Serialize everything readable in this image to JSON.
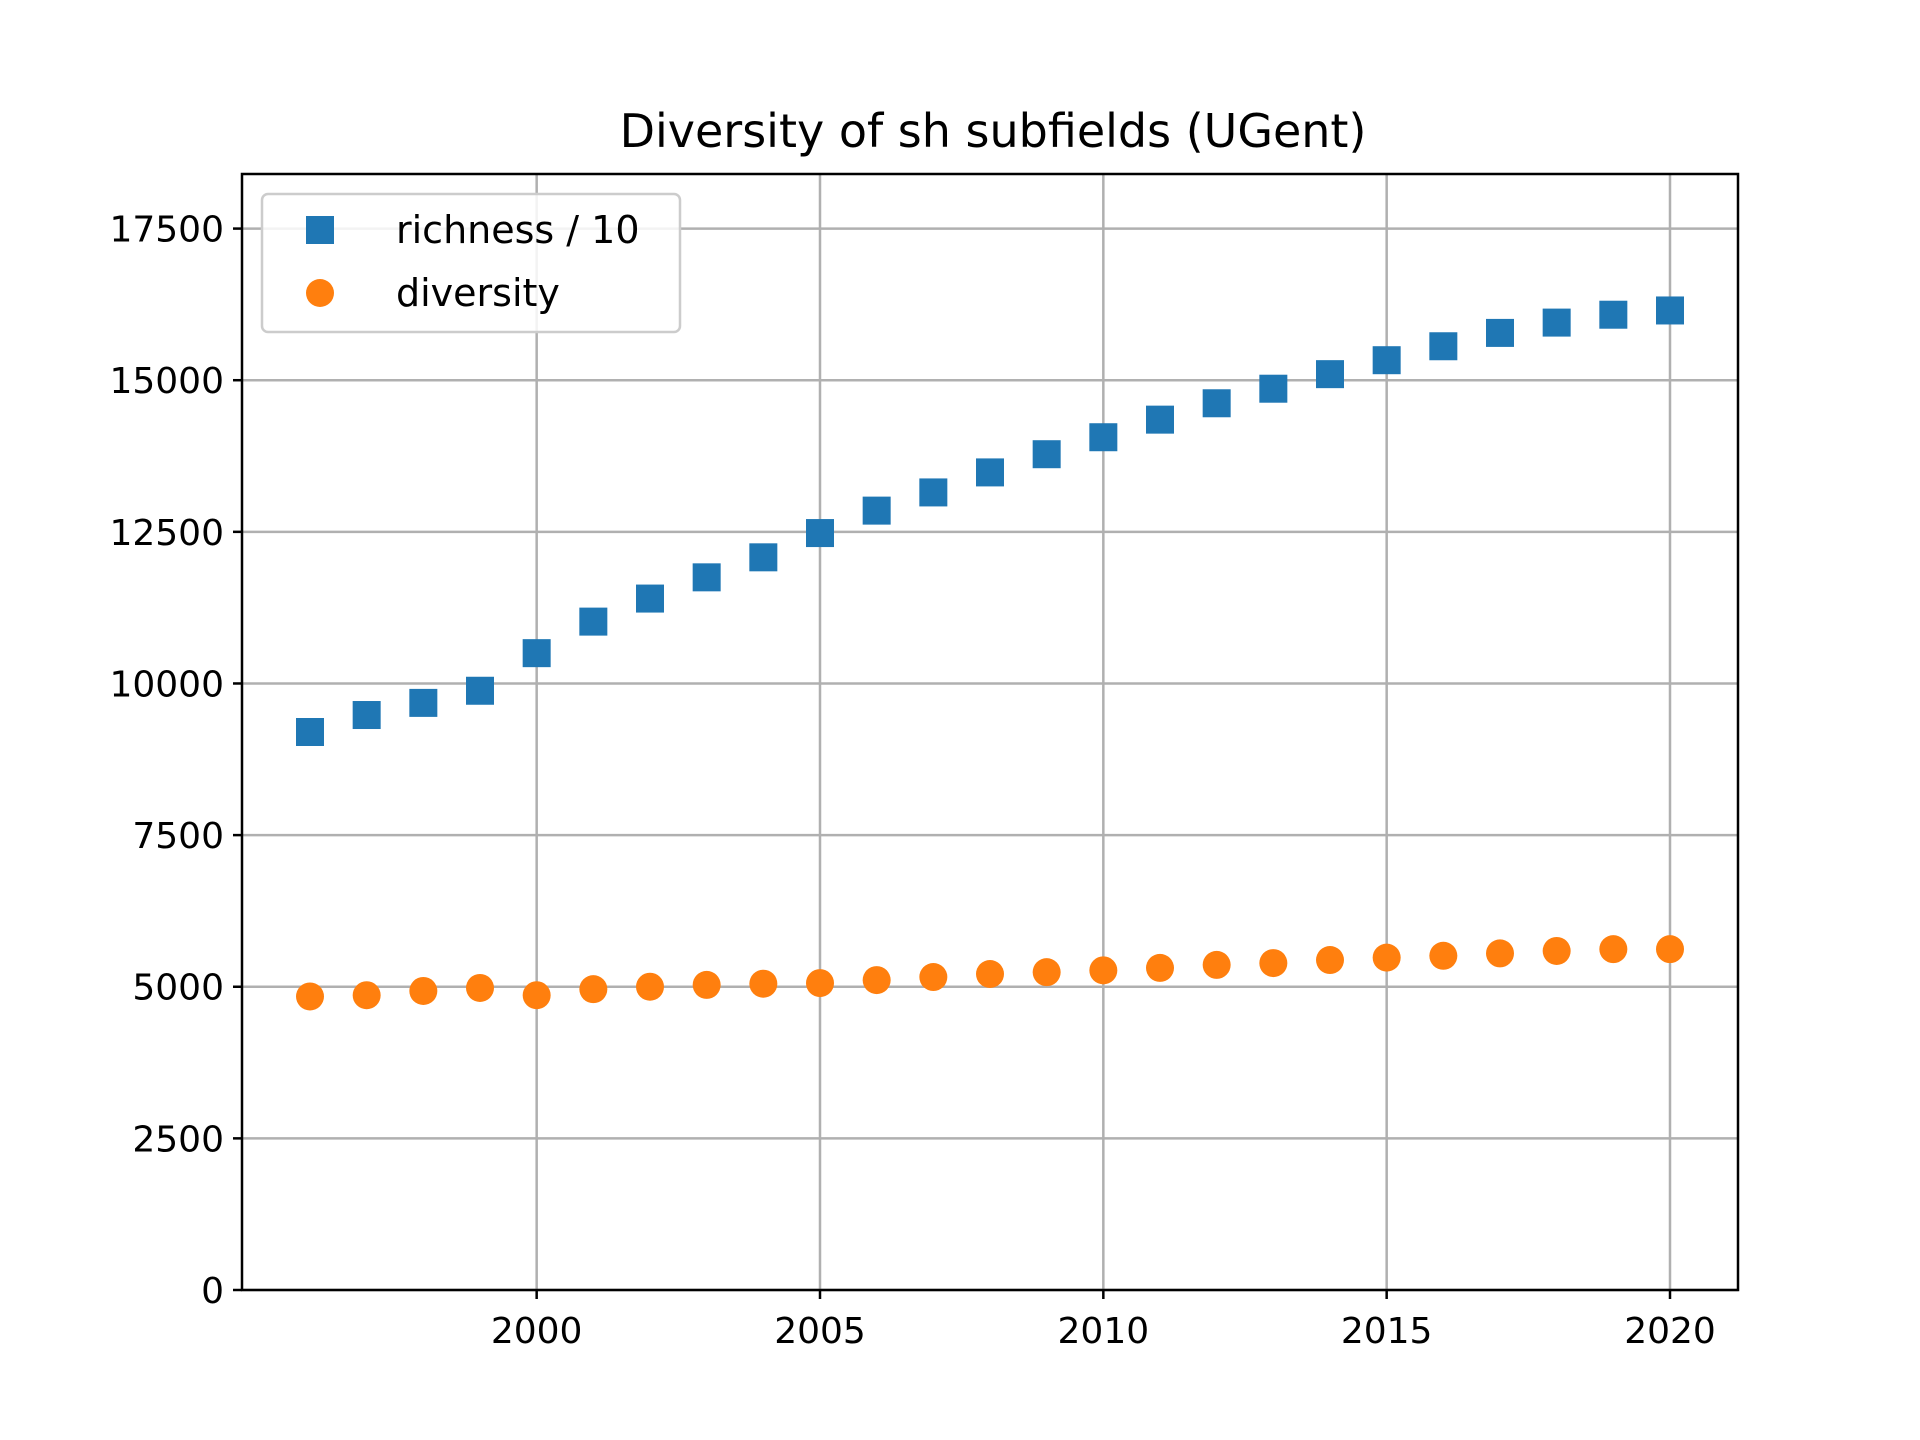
{
  "chart_data": {
    "type": "scatter",
    "title": "Diversity of sh subfields (UGent)",
    "xlabel": "",
    "ylabel": "",
    "xlim": [
      1994.8,
      2021.2
    ],
    "ylim": [
      0,
      18400
    ],
    "grid": true,
    "legend_position": "top-left",
    "x_ticks": [
      2000,
      2005,
      2010,
      2015,
      2020
    ],
    "y_ticks": [
      0,
      2500,
      5000,
      7500,
      10000,
      12500,
      15000,
      17500
    ],
    "x": [
      1996,
      1997,
      1998,
      1999,
      2000,
      2001,
      2002,
      2003,
      2004,
      2005,
      2006,
      2007,
      2008,
      2009,
      2010,
      2011,
      2012,
      2013,
      2014,
      2015,
      2016,
      2017,
      2018,
      2019,
      2020
    ],
    "series": [
      {
        "name": "richness / 10",
        "marker": "square",
        "color": "#1f77b4",
        "values": [
          9200,
          9480,
          9680,
          9880,
          10500,
          11020,
          11400,
          11750,
          12080,
          12480,
          12850,
          13150,
          13480,
          13780,
          14060,
          14350,
          14620,
          14860,
          15100,
          15330,
          15560,
          15780,
          15950,
          16080,
          16150
        ]
      },
      {
        "name": "diversity",
        "marker": "circle",
        "color": "#ff7f0e",
        "values": [
          4840,
          4860,
          4930,
          4980,
          4860,
          4960,
          5000,
          5030,
          5050,
          5060,
          5110,
          5160,
          5210,
          5240,
          5270,
          5310,
          5360,
          5390,
          5440,
          5480,
          5510,
          5550,
          5590,
          5620,
          5620
        ]
      }
    ]
  }
}
